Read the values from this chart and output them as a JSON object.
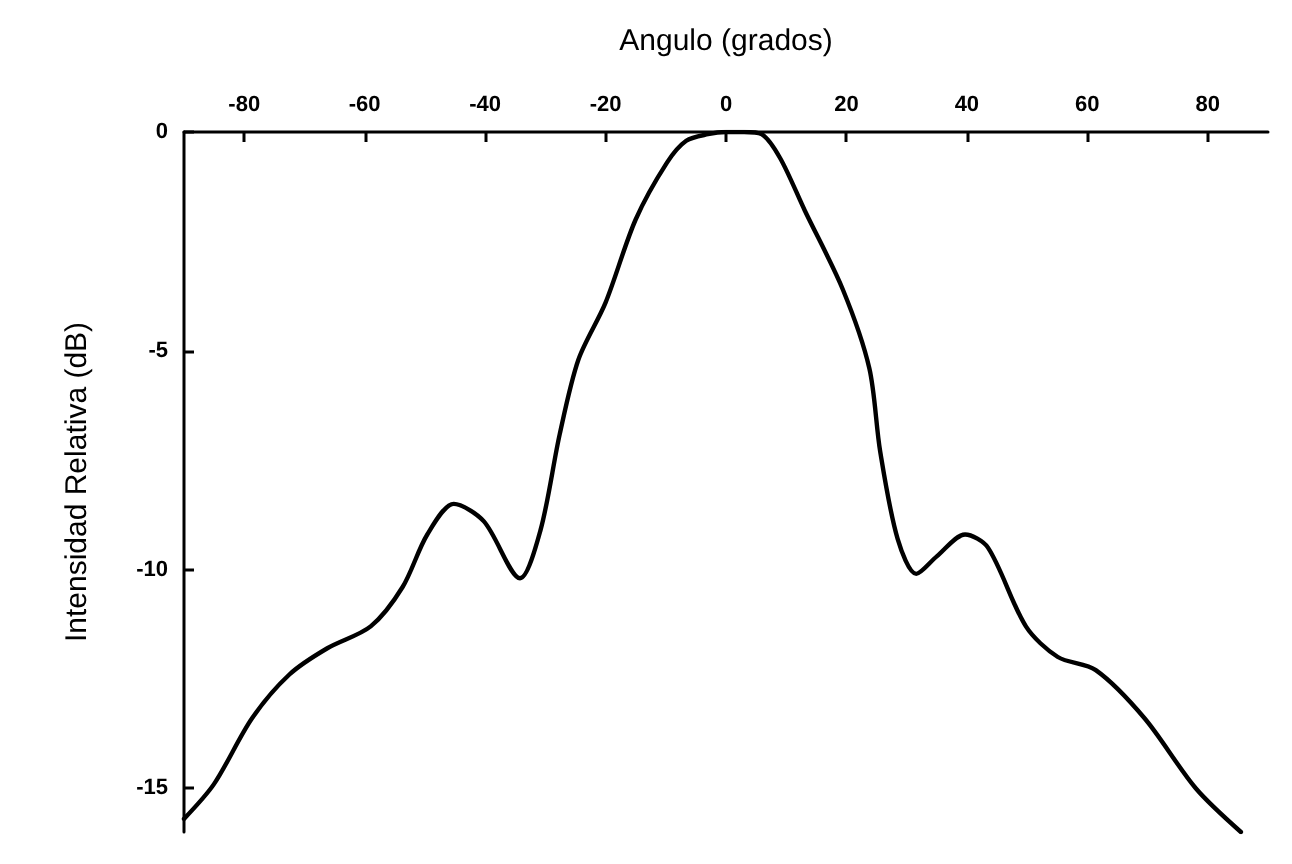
{
  "chart_data": {
    "type": "line",
    "xlabel": "Angulo (grados)",
    "ylabel": "Intensidad Relativa (dB)",
    "xlim": [
      -90,
      90
    ],
    "xticks": [
      -80,
      -60,
      -40,
      -20,
      0,
      20,
      40,
      60,
      80
    ],
    "ylim": [
      -16,
      0
    ],
    "yticks": [
      -15,
      -10,
      -5,
      0
    ],
    "grid": false,
    "marker": "none",
    "line_style": "solid",
    "series": [
      {
        "color": "#000000",
        "x": [
          -90,
          -85,
          -78.7,
          -72.5,
          -66.2,
          -59,
          -53.7,
          -49.6,
          -45.2,
          -40.2,
          -34.2,
          -30.8,
          -27.6,
          -24.5,
          -20,
          -15,
          -9.8,
          -6.6,
          -3,
          0,
          3,
          5.9,
          9,
          13.1,
          19.4,
          23.8,
          25.6,
          28.5,
          31.6,
          35,
          39.7,
          43.5,
          49.8,
          55.1,
          61.4,
          69.5,
          78,
          85.5
        ],
        "values": [
          -15.7,
          -14.9,
          -13.4,
          -12.4,
          -11.8,
          -11.3,
          -10.4,
          -9.2,
          -8.5,
          -8.9,
          -10.2,
          -9.1,
          -6.9,
          -5.2,
          -3.9,
          -2,
          -0.7,
          -0.2,
          -0.05,
          0,
          0,
          -0.05,
          -0.6,
          -1.8,
          -3.6,
          -5.4,
          -7.3,
          -9.3,
          -10.1,
          -9.7,
          -9.2,
          -9.5,
          -11.3,
          -12,
          -12.3,
          -13.4,
          -15,
          -16
        ]
      }
    ]
  }
}
